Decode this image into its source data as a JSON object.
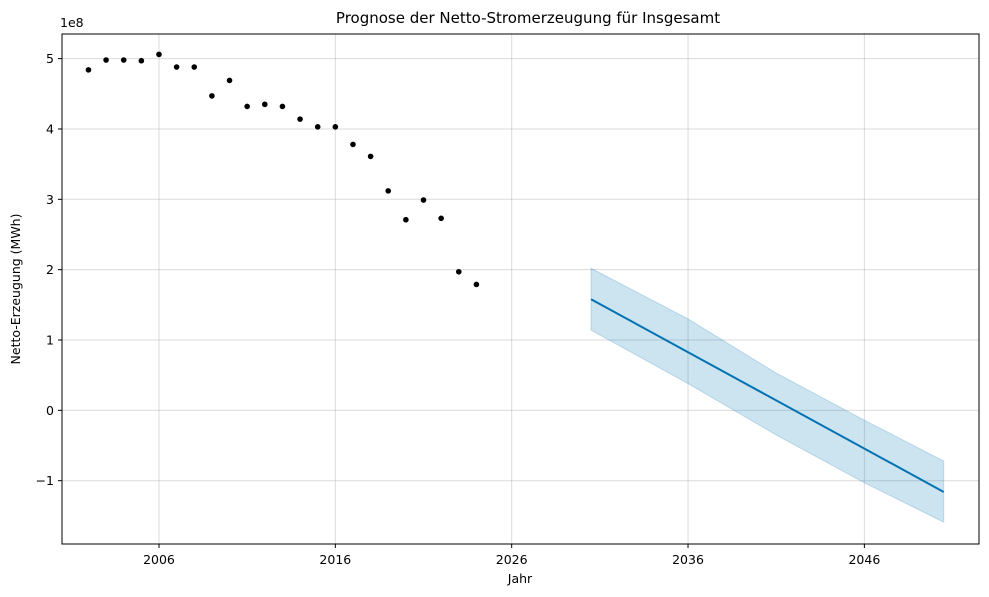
{
  "chart_data": {
    "type": "scatter",
    "title": "Prognose der Netto-Stromerzeugung für Insgesamt",
    "xlabel": "Jahr",
    "ylabel": "Netto-Erzeugung (MWh)",
    "y_offset_label": "1e8",
    "xlim": [
      2000.5,
      2052.5
    ],
    "ylim": [
      -1.9,
      5.35
    ],
    "x_ticks": [
      2006,
      2016,
      2026,
      2036,
      2046
    ],
    "x_tick_labels": [
      "2006",
      "2016",
      "2026",
      "2036",
      "2046"
    ],
    "y_ticks": [
      -1,
      0,
      1,
      2,
      3,
      4,
      5
    ],
    "y_tick_labels": [
      "−1",
      "0",
      "1",
      "2",
      "3",
      "4",
      "5"
    ],
    "grid": true,
    "series": [
      {
        "kind": "points",
        "color": "#000000",
        "x": [
          2002,
          2003,
          2004,
          2005,
          2006,
          2007,
          2008,
          2009,
          2010,
          2011,
          2012,
          2013,
          2014,
          2015,
          2016,
          2017,
          2018,
          2019,
          2020,
          2021,
          2022,
          2023,
          2024
        ],
        "y": [
          4.84,
          4.98,
          4.98,
          4.97,
          5.06,
          4.88,
          4.88,
          4.47,
          4.69,
          4.32,
          4.35,
          4.32,
          4.14,
          4.03,
          4.03,
          3.78,
          3.61,
          3.12,
          2.71,
          2.99,
          2.73,
          1.97,
          1.79
        ]
      },
      {
        "kind": "line",
        "color": "#0072B2",
        "x": [
          2030.5,
          2050.5
        ],
        "y": [
          1.58,
          -1.16
        ]
      },
      {
        "kind": "band",
        "color": "#0072B2",
        "x": [
          2030.5,
          2036,
          2041,
          2046,
          2050.5
        ],
        "upper": [
          2.02,
          1.3,
          0.53,
          -0.14,
          -0.72
        ],
        "lower": [
          1.14,
          0.38,
          -0.35,
          -1.03,
          -1.59
        ]
      }
    ]
  }
}
